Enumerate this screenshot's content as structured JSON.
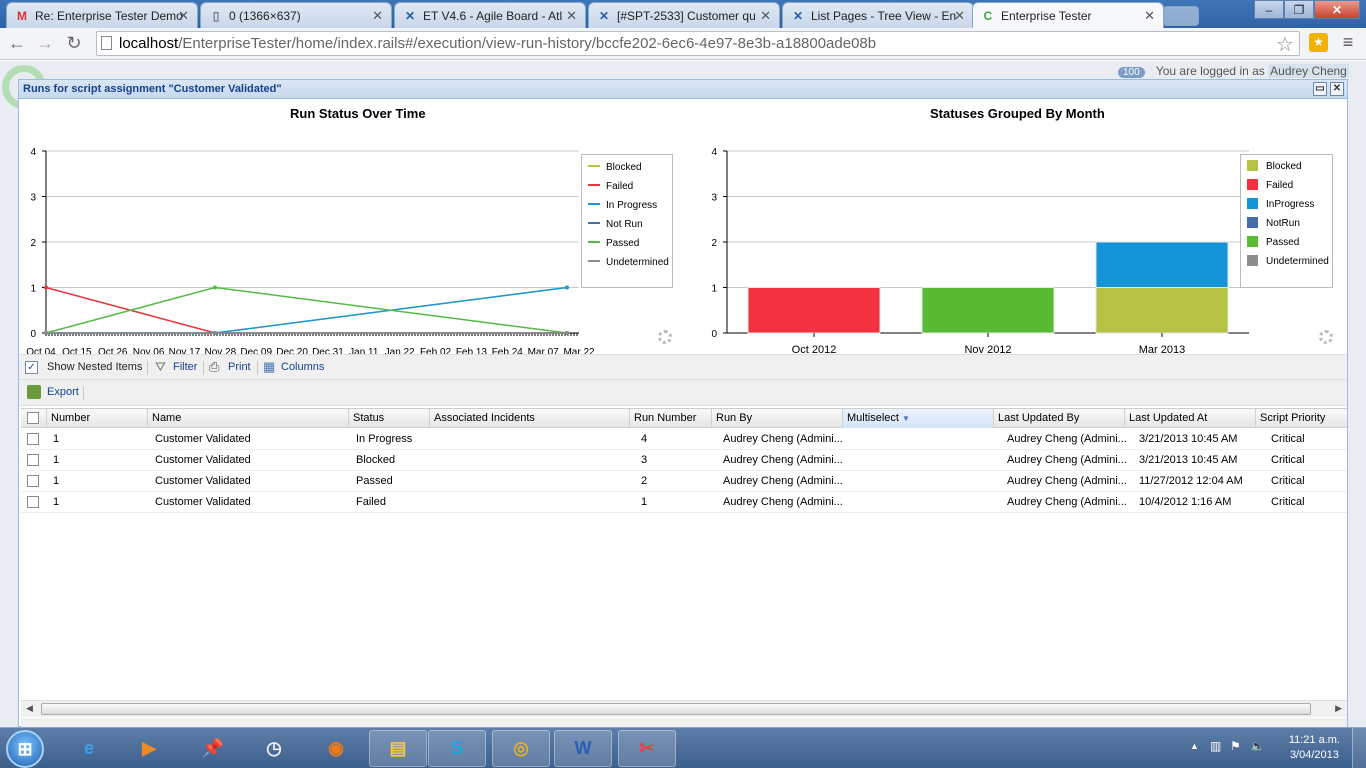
{
  "browser": {
    "tabs": [
      {
        "label": "Re: Enterprise Tester Demo",
        "icon": "gmail-icon",
        "glyph": "M"
      },
      {
        "label": "0 (1366×637)",
        "icon": "page-icon",
        "glyph": "▯"
      },
      {
        "label": "ET V4.6 - Agile Board - Atl",
        "icon": "jira-icon",
        "glyph": "✕"
      },
      {
        "label": "[#SPT-2533] Customer qu",
        "icon": "jira-icon",
        "glyph": "✕"
      },
      {
        "label": "List Pages - Tree View - En",
        "icon": "confluence-icon",
        "glyph": "✕"
      },
      {
        "label": "Enterprise Tester",
        "icon": "et-icon",
        "glyph": "C"
      }
    ],
    "url_host": "localhost",
    "url_path": "/EnterpriseTester/home/index.rails#/execution/view-run-history/bccfe202-6ec6-4e97-8e3b-a18800ade08b"
  },
  "app": {
    "badge_count": "100",
    "login_prefix": "You are logged in as",
    "login_user": "Audrey Cheng"
  },
  "dialog": {
    "title": "Runs for script assignment \"Customer Validated\""
  },
  "chart_data": [
    {
      "type": "line",
      "title": "Run Status Over Time",
      "xlabel": "",
      "ylabel": "",
      "ylim": [
        0,
        4
      ],
      "yticks": [
        "0",
        "1",
        "2",
        "3",
        "4"
      ],
      "x_tick_labels": [
        "Oct 04",
        "Oct 15",
        "Oct 26",
        "Nov 06",
        "Nov 17",
        "Nov 28",
        "Dec 09",
        "Dec 20",
        "Dec 31",
        "Jan 11",
        "Jan 22",
        "Feb 02",
        "Feb 13",
        "Feb 24",
        "Mar 07",
        "Mar 22"
      ],
      "x": [
        "Oct 04",
        "Nov 27",
        "Mar 21"
      ],
      "series": [
        {
          "name": "Blocked",
          "color": "#b5c244",
          "values": [
            0,
            0,
            1
          ]
        },
        {
          "name": "Failed",
          "color": "#e3383f",
          "values": [
            1,
            0,
            0
          ]
        },
        {
          "name": "In Progress",
          "color": "#1b98d9",
          "values": [
            0,
            0,
            1
          ]
        },
        {
          "name": "Not Run",
          "color": "#4a6ea8",
          "values": [
            0,
            0,
            0
          ]
        },
        {
          "name": "Passed",
          "color": "#56b947",
          "values": [
            0,
            1,
            0
          ]
        },
        {
          "name": "Undetermined",
          "color": "#8c8c8c",
          "values": [
            0,
            0,
            0
          ]
        }
      ],
      "legend": "right",
      "grid": true
    },
    {
      "type": "bar",
      "stacked": true,
      "title": "Statuses Grouped By Month",
      "categories": [
        "Oct 2012",
        "Nov 2012",
        "Mar 2013"
      ],
      "ylim": [
        0,
        4
      ],
      "yticks": [
        "0",
        "1",
        "2",
        "3",
        "4"
      ],
      "series": [
        {
          "name": "Blocked",
          "color": "#b5c244",
          "values": [
            0,
            0,
            1
          ]
        },
        {
          "name": "Failed",
          "color": "#f2333f",
          "values": [
            1,
            0,
            0
          ]
        },
        {
          "name": "InProgress",
          "color": "#1694d8",
          "values": [
            0,
            0,
            1
          ]
        },
        {
          "name": "NotRun",
          "color": "#466ba6",
          "values": [
            0,
            0,
            0
          ]
        },
        {
          "name": "Passed",
          "color": "#58bb33",
          "values": [
            0,
            1,
            0
          ]
        },
        {
          "name": "Undetermined",
          "color": "#8e8e8e",
          "values": [
            0,
            0,
            0
          ]
        }
      ],
      "legend": "right",
      "grid": true
    }
  ],
  "toolbar": {
    "show_nested_label": "Show Nested Items",
    "show_nested_checked": "✓",
    "filter_label": "Filter",
    "print_label": "Print",
    "columns_label": "Columns",
    "export_label": "Export"
  },
  "grid": {
    "columns": [
      "Number",
      "Name",
      "Status",
      "Associated Incidents",
      "Run Number",
      "Run By",
      "Multiselect",
      "Last Updated By",
      "Last Updated At",
      "Script Priority"
    ],
    "rows": [
      {
        "number": "1",
        "name": "Customer Validated",
        "status": "In Progress",
        "incidents": "",
        "run_number": "4",
        "run_by": "Audrey Cheng (Admini...",
        "multiselect": "",
        "updated_by": "Audrey Cheng (Admini...",
        "updated_at": "3/21/2013 10:45 AM",
        "priority": "Critical"
      },
      {
        "number": "1",
        "name": "Customer Validated",
        "status": "Blocked",
        "incidents": "",
        "run_number": "3",
        "run_by": "Audrey Cheng (Admini...",
        "multiselect": "",
        "updated_by": "Audrey Cheng (Admini...",
        "updated_at": "3/21/2013 10:45 AM",
        "priority": "Critical"
      },
      {
        "number": "1",
        "name": "Customer Validated",
        "status": "Passed",
        "incidents": "",
        "run_number": "2",
        "run_by": "Audrey Cheng (Admini...",
        "multiselect": "",
        "updated_by": "Audrey Cheng (Admini...",
        "updated_at": "11/27/2012 12:04 AM",
        "priority": "Critical"
      },
      {
        "number": "1",
        "name": "Customer Validated",
        "status": "Failed",
        "incidents": "",
        "run_number": "1",
        "run_by": "Audrey Cheng (Admini...",
        "multiselect": "",
        "updated_by": "Audrey Cheng (Admini...",
        "updated_at": "10/4/2012 1:16 AM",
        "priority": "Critical"
      }
    ]
  },
  "taskbar": {
    "apps": [
      {
        "name": "internet-explorer-icon",
        "glyph": "e",
        "color": "#3ca0f0"
      },
      {
        "name": "media-player-icon",
        "glyph": "▶",
        "color": "#f08a24"
      },
      {
        "name": "pushpin-app-icon",
        "glyph": "📌",
        "color": "#d22"
      },
      {
        "name": "clock-app-icon",
        "glyph": "◷",
        "color": "#eee"
      },
      {
        "name": "firefox-icon",
        "glyph": "◉",
        "color": "#f07a1a"
      },
      {
        "name": "file-explorer-icon",
        "glyph": "▤",
        "color": "#f2c94c"
      },
      {
        "name": "skype-icon",
        "glyph": "S",
        "color": "#14a8e8"
      },
      {
        "name": "chrome-icon",
        "glyph": "◎",
        "color": "#e8b020"
      },
      {
        "name": "word-icon",
        "glyph": "W",
        "color": "#2b5fb3"
      },
      {
        "name": "snipping-tool-icon",
        "glyph": "✂",
        "color": "#d44"
      }
    ],
    "time": "11:21 a.m.",
    "date": "3/04/2013"
  }
}
